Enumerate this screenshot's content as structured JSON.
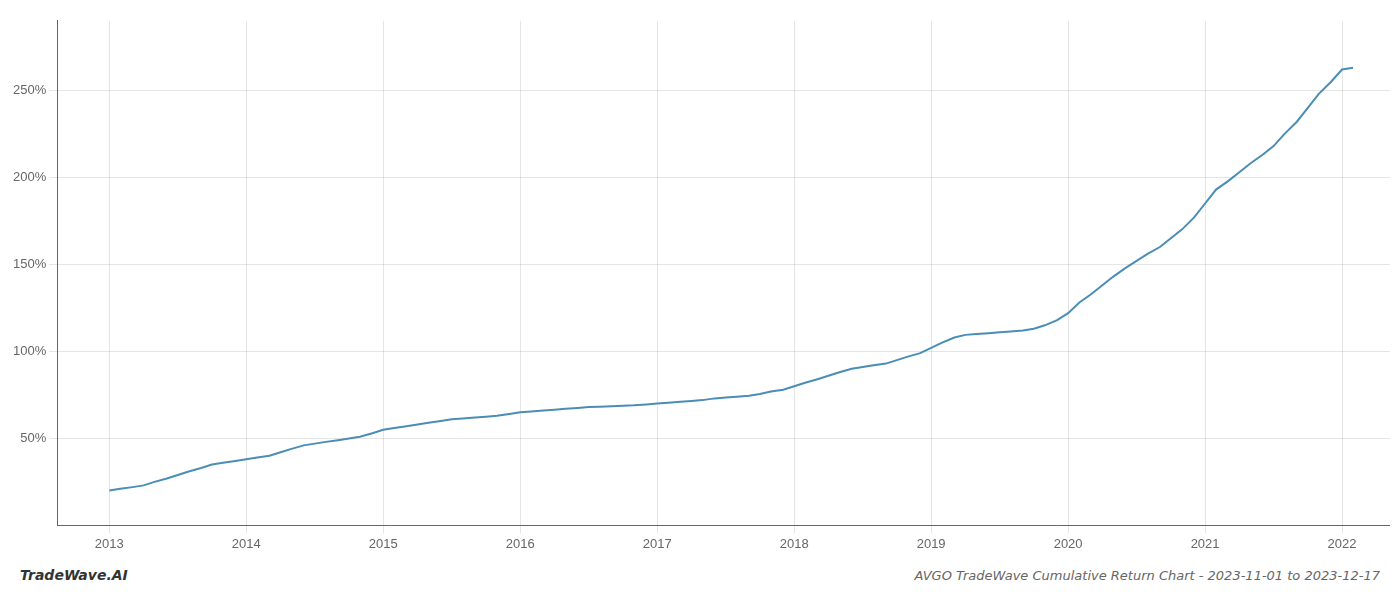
{
  "chart_data": {
    "type": "line",
    "title": "AVGO TradeWave Cumulative Return Chart - 2023-11-01 to 2023-12-17",
    "annotations": [
      "TradeWave.AI"
    ],
    "color": "#4a8db5",
    "x": [
      2013.0,
      2013.08,
      2013.17,
      2013.25,
      2013.33,
      2013.42,
      2013.5,
      2013.58,
      2013.67,
      2013.75,
      2013.83,
      2013.92,
      2014.0,
      2014.08,
      2014.17,
      2014.25,
      2014.33,
      2014.42,
      2014.5,
      2014.58,
      2014.67,
      2014.75,
      2014.83,
      2014.92,
      2015.0,
      2015.08,
      2015.17,
      2015.25,
      2015.33,
      2015.42,
      2015.5,
      2015.58,
      2015.67,
      2015.75,
      2015.83,
      2015.92,
      2016.0,
      2016.08,
      2016.17,
      2016.25,
      2016.33,
      2016.42,
      2016.5,
      2016.58,
      2016.67,
      2016.75,
      2016.83,
      2016.92,
      2017.0,
      2017.08,
      2017.17,
      2017.25,
      2017.33,
      2017.42,
      2017.5,
      2017.58,
      2017.67,
      2017.75,
      2017.83,
      2017.92,
      2018.0,
      2018.08,
      2018.17,
      2018.25,
      2018.33,
      2018.42,
      2018.5,
      2018.58,
      2018.67,
      2018.75,
      2018.83,
      2018.92,
      2019.0,
      2019.08,
      2019.17,
      2019.25,
      2019.33,
      2019.42,
      2019.5,
      2019.58,
      2019.67,
      2019.75,
      2019.83,
      2019.92,
      2020.0,
      2020.08,
      2020.17,
      2020.25,
      2020.33,
      2020.42,
      2020.5,
      2020.58,
      2020.67,
      2020.75,
      2020.83,
      2020.92,
      2021.0,
      2021.08,
      2021.17,
      2021.25,
      2021.33,
      2021.42,
      2021.5,
      2021.58,
      2021.67,
      2021.75,
      2021.83,
      2021.92,
      2022.0,
      2022.08
    ],
    "values": [
      20,
      21,
      22,
      23,
      25,
      27,
      29,
      31,
      33,
      35,
      36,
      37,
      38,
      39,
      40,
      42,
      44,
      46,
      47,
      48,
      49,
      50,
      51,
      53,
      55,
      56,
      57,
      58,
      59,
      60,
      61,
      61.5,
      62,
      62.5,
      63,
      64,
      65,
      65.5,
      66,
      66.5,
      67,
      67.5,
      68,
      68.2,
      68.5,
      68.8,
      69,
      69.5,
      70,
      70.5,
      71,
      71.5,
      72,
      73,
      73.5,
      74,
      74.5,
      75.5,
      77,
      78,
      80,
      82,
      84,
      86,
      88,
      90,
      91,
      92,
      93,
      95,
      97,
      99,
      102,
      105,
      108,
      109.5,
      110,
      110.5,
      111,
      111.5,
      112,
      113,
      115,
      118,
      122,
      128,
      133,
      138,
      143,
      148,
      152,
      156,
      160,
      165,
      170,
      177,
      185,
      193,
      198,
      203,
      208,
      213,
      218,
      225,
      232,
      240,
      248,
      255,
      262,
      263
    ],
    "xlim": [
      2012.62,
      2022.35
    ],
    "xticks": [
      2013,
      2014,
      2015,
      2016,
      2017,
      2018,
      2019,
      2020,
      2021,
      2022
    ],
    "ylim": [
      0,
      290
    ],
    "yticks": [
      {
        "value": 50,
        "label": "50%"
      },
      {
        "value": 100,
        "label": "100%"
      },
      {
        "value": 150,
        "label": "150%"
      },
      {
        "value": 200,
        "label": "200%"
      },
      {
        "value": 250,
        "label": "250%"
      }
    ],
    "grid": true
  }
}
